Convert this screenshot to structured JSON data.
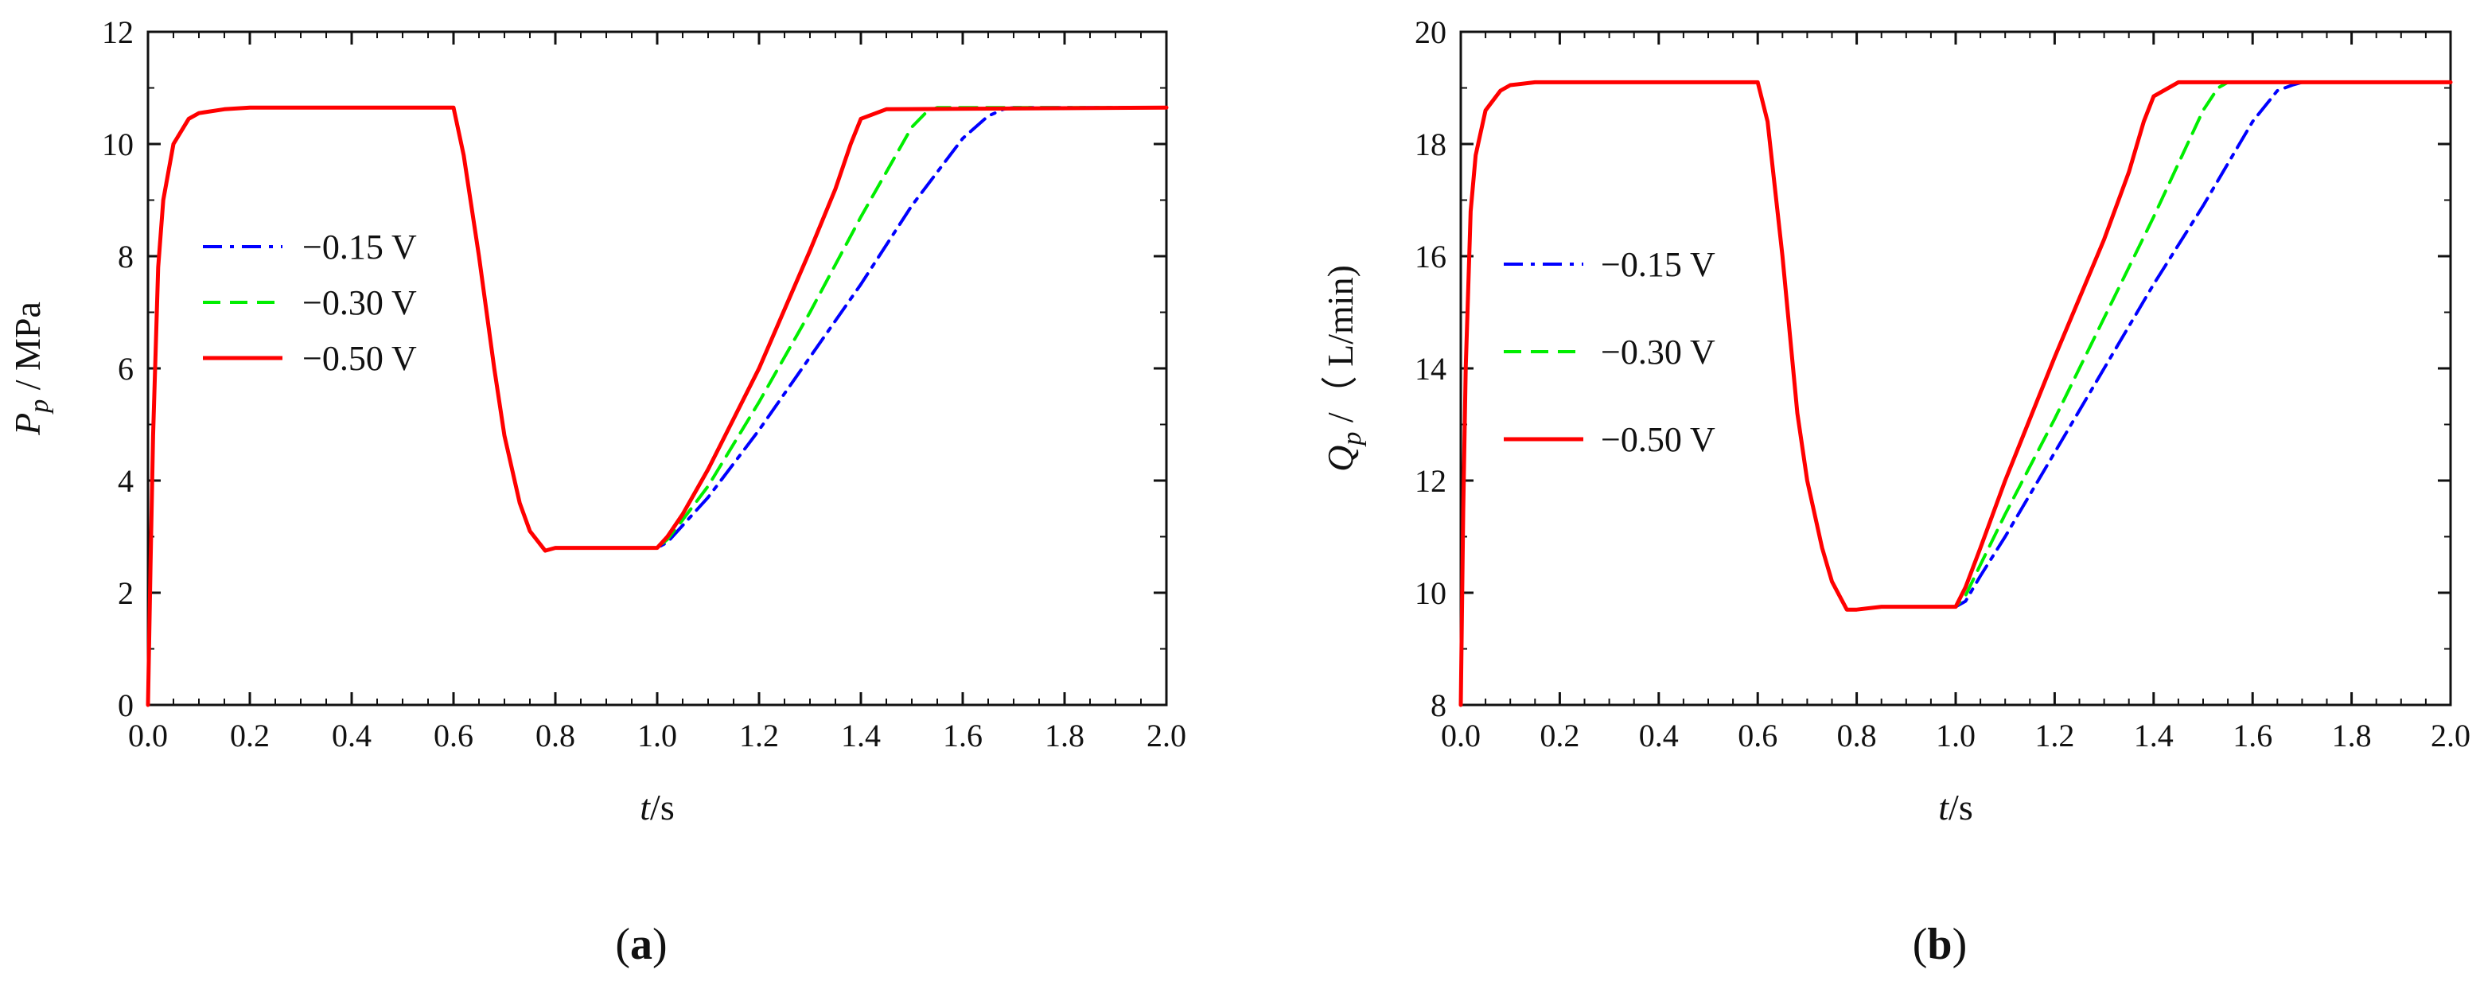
{
  "chart_data": [
    {
      "type": "line",
      "panel": "a",
      "caption_open": "(",
      "caption_letter": "a",
      "caption_close": ")",
      "xlabel_var": "t",
      "xlabel_unit": "/s",
      "ylabel_var": "P",
      "ylabel_sub": "p",
      "ylabel_unit": " / MPa",
      "xlim": [
        0,
        2.0
      ],
      "ylim": [
        0,
        12
      ],
      "xticks": [
        "0.0",
        "0.2",
        "0.4",
        "0.6",
        "0.8",
        "1.0",
        "1.2",
        "1.4",
        "1.6",
        "1.8",
        "2.0"
      ],
      "yticks": [
        "0",
        "2",
        "4",
        "6",
        "8",
        "10",
        "12"
      ],
      "legend_position": "middle-left",
      "series": [
        {
          "name": "−0.15 V",
          "color": "#0000ff",
          "dash": "dashdot",
          "x": [
            0,
            0.005,
            0.01,
            0.02,
            0.03,
            0.05,
            0.08,
            0.1,
            0.15,
            0.2,
            0.6,
            0.62,
            0.65,
            0.68,
            0.7,
            0.73,
            0.75,
            0.78,
            0.8,
            1.0,
            1.02,
            1.05,
            1.1,
            1.2,
            1.3,
            1.4,
            1.5,
            1.6,
            1.65,
            1.68,
            1.7,
            2.0
          ],
          "y": [
            0,
            2.5,
            4.8,
            7.8,
            9.0,
            10.0,
            10.45,
            10.55,
            10.62,
            10.65,
            10.65,
            9.8,
            8.0,
            6.0,
            4.8,
            3.6,
            3.1,
            2.75,
            2.8,
            2.8,
            2.9,
            3.2,
            3.7,
            4.9,
            6.2,
            7.5,
            8.9,
            10.1,
            10.5,
            10.62,
            10.65,
            10.65
          ]
        },
        {
          "name": "−0.30 V",
          "color": "#00ee00",
          "dash": "dash",
          "x": [
            0,
            0.005,
            0.01,
            0.02,
            0.03,
            0.05,
            0.08,
            0.1,
            0.15,
            0.2,
            0.6,
            0.62,
            0.65,
            0.68,
            0.7,
            0.73,
            0.75,
            0.78,
            0.8,
            1.0,
            1.02,
            1.05,
            1.1,
            1.2,
            1.3,
            1.4,
            1.5,
            1.53,
            1.55,
            2.0
          ],
          "y": [
            0,
            2.5,
            4.8,
            7.8,
            9.0,
            10.0,
            10.45,
            10.55,
            10.62,
            10.65,
            10.65,
            9.8,
            8.0,
            6.0,
            4.8,
            3.6,
            3.1,
            2.75,
            2.8,
            2.8,
            2.95,
            3.3,
            3.9,
            5.4,
            7.0,
            8.7,
            10.3,
            10.58,
            10.65,
            10.65
          ]
        },
        {
          "name": "−0.50 V",
          "color": "#ff0000",
          "dash": "solid",
          "x": [
            0,
            0.005,
            0.01,
            0.02,
            0.03,
            0.05,
            0.08,
            0.1,
            0.15,
            0.2,
            0.6,
            0.62,
            0.65,
            0.68,
            0.7,
            0.73,
            0.75,
            0.78,
            0.8,
            1.0,
            1.02,
            1.05,
            1.1,
            1.2,
            1.3,
            1.35,
            1.38,
            1.4,
            1.45,
            2.0
          ],
          "y": [
            0,
            2.5,
            4.8,
            7.8,
            9.0,
            10.0,
            10.45,
            10.55,
            10.62,
            10.65,
            10.65,
            9.8,
            8.0,
            6.0,
            4.8,
            3.6,
            3.1,
            2.75,
            2.8,
            2.8,
            3.0,
            3.4,
            4.2,
            6.0,
            8.1,
            9.2,
            10.0,
            10.45,
            10.62,
            10.65
          ]
        }
      ]
    },
    {
      "type": "line",
      "panel": "b",
      "caption_open": "(",
      "caption_letter": "b",
      "caption_close": ")",
      "xlabel_var": "t",
      "xlabel_unit": "/s",
      "ylabel_var": "Q",
      "ylabel_sub": "p",
      "ylabel_unit": " /（ L/min)",
      "xlim": [
        0,
        2.0
      ],
      "ylim": [
        8,
        20
      ],
      "xticks": [
        "0.0",
        "0.2",
        "0.4",
        "0.6",
        "0.8",
        "1.0",
        "1.2",
        "1.4",
        "1.6",
        "1.8",
        "2.0"
      ],
      "yticks": [
        "8",
        "10",
        "12",
        "14",
        "16",
        "18",
        "20"
      ],
      "legend_position": "middle-left",
      "series": [
        {
          "name": "−0.15 V",
          "color": "#0000ff",
          "dash": "dashdot",
          "x": [
            0,
            0.005,
            0.01,
            0.02,
            0.03,
            0.05,
            0.08,
            0.1,
            0.15,
            0.2,
            0.6,
            0.62,
            0.65,
            0.68,
            0.7,
            0.73,
            0.75,
            0.78,
            0.8,
            0.85,
            1.0,
            1.02,
            1.05,
            1.1,
            1.2,
            1.3,
            1.4,
            1.5,
            1.6,
            1.65,
            1.68,
            1.7,
            2.0
          ],
          "y": [
            8,
            11.5,
            14.0,
            16.8,
            17.8,
            18.6,
            18.95,
            19.05,
            19.1,
            19.1,
            19.1,
            18.4,
            16.0,
            13.2,
            12.0,
            10.8,
            10.2,
            9.7,
            9.7,
            9.75,
            9.75,
            9.85,
            10.3,
            11.0,
            12.5,
            14.0,
            15.5,
            16.9,
            18.4,
            18.95,
            19.05,
            19.1,
            19.1
          ]
        },
        {
          "name": "−0.30 V",
          "color": "#00ee00",
          "dash": "dash",
          "x": [
            0,
            0.005,
            0.01,
            0.02,
            0.03,
            0.05,
            0.08,
            0.1,
            0.15,
            0.2,
            0.6,
            0.62,
            0.65,
            0.68,
            0.7,
            0.73,
            0.75,
            0.78,
            0.8,
            0.85,
            1.0,
            1.02,
            1.05,
            1.1,
            1.2,
            1.3,
            1.4,
            1.5,
            1.53,
            1.55,
            2.0
          ],
          "y": [
            8,
            11.5,
            14.0,
            16.8,
            17.8,
            18.6,
            18.95,
            19.05,
            19.1,
            19.1,
            19.1,
            18.4,
            16.0,
            13.2,
            12.0,
            10.8,
            10.2,
            9.7,
            9.7,
            9.75,
            9.75,
            9.95,
            10.5,
            11.4,
            13.1,
            14.9,
            16.7,
            18.6,
            19.0,
            19.1,
            19.1
          ]
        },
        {
          "name": "−0.50 V",
          "color": "#ff0000",
          "dash": "solid",
          "x": [
            0,
            0.005,
            0.01,
            0.02,
            0.03,
            0.05,
            0.08,
            0.1,
            0.15,
            0.2,
            0.6,
            0.62,
            0.65,
            0.68,
            0.7,
            0.73,
            0.75,
            0.78,
            0.8,
            0.85,
            1.0,
            1.02,
            1.05,
            1.1,
            1.2,
            1.3,
            1.35,
            1.38,
            1.4,
            1.45,
            2.0
          ],
          "y": [
            8,
            11.5,
            14.0,
            16.8,
            17.8,
            18.6,
            18.95,
            19.05,
            19.1,
            19.1,
            19.1,
            18.4,
            16.0,
            13.2,
            12.0,
            10.8,
            10.2,
            9.7,
            9.7,
            9.75,
            9.75,
            10.1,
            10.8,
            12.0,
            14.2,
            16.3,
            17.5,
            18.4,
            18.85,
            19.1,
            19.1
          ]
        }
      ]
    }
  ]
}
